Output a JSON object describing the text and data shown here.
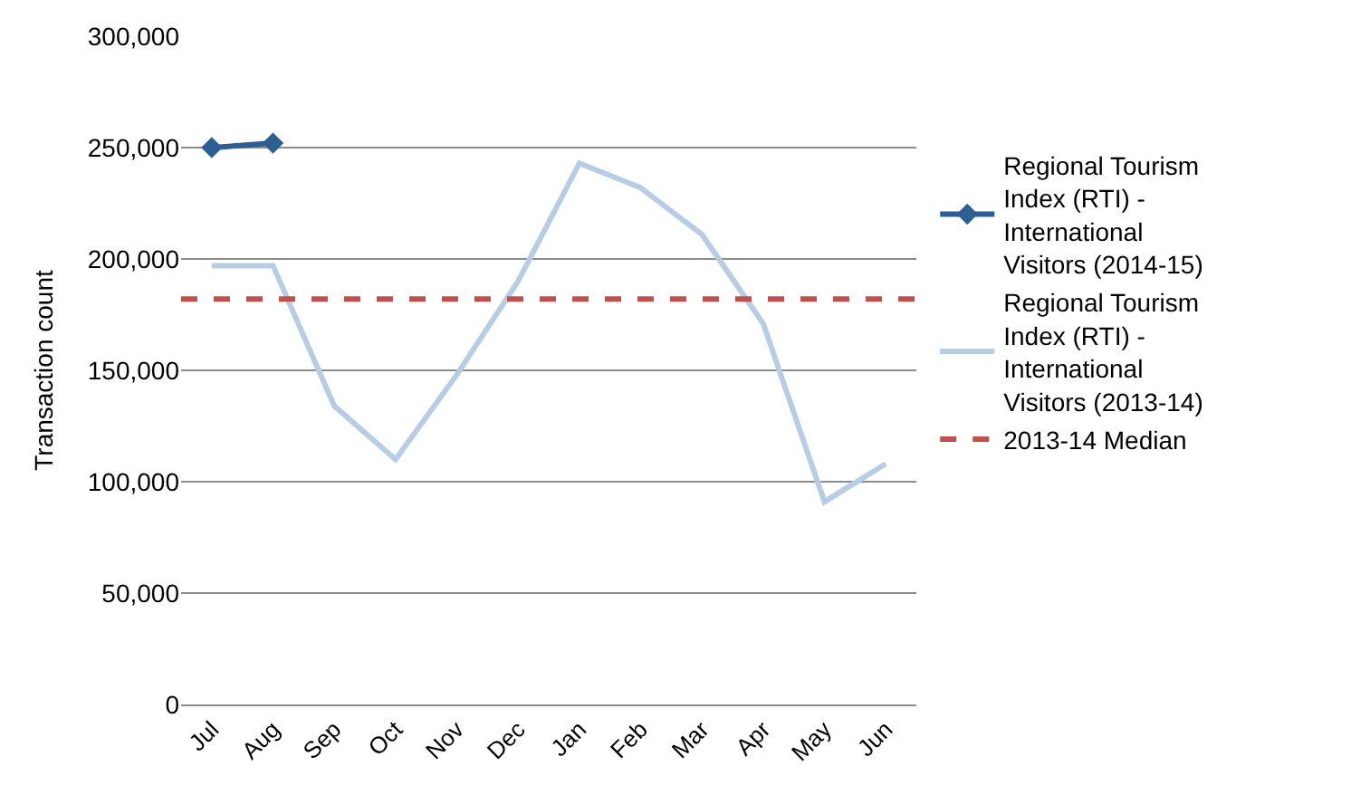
{
  "chart_data": {
    "type": "line",
    "ylabel": "Transaction count",
    "categories": [
      "Jul",
      "Aug",
      "Sep",
      "Oct",
      "Nov",
      "Dec",
      "Jan",
      "Feb",
      "Mar",
      "Apr",
      "May",
      "Jun"
    ],
    "series": [
      {
        "name": "Regional Tourism Index (RTI) - International Visitors (2014-15)",
        "color": "#2e5f94",
        "marker": "diamond",
        "values": [
          250000,
          252000,
          null,
          null,
          null,
          null,
          null,
          null,
          null,
          null,
          null,
          null
        ]
      },
      {
        "name": "Regional Tourism Index (RTI) - International Visitors (2013-14)",
        "color": "#b7cde6",
        "marker": "none",
        "values": [
          197000,
          197000,
          134000,
          110000,
          148000,
          190000,
          243000,
          232000,
          211000,
          171000,
          91000,
          108000
        ]
      }
    ],
    "ref_lines": [
      {
        "axis": "y",
        "value": 182000,
        "label": "2013-14 Median",
        "color": "#c0504d",
        "line_style": "dashed"
      }
    ],
    "ylim": [
      0,
      300000
    ],
    "yticks": [
      {
        "value": 0,
        "label": "0"
      },
      {
        "value": 50000,
        "label": "50,000"
      },
      {
        "value": 100000,
        "label": "100,000"
      },
      {
        "value": 150000,
        "label": "150,000"
      },
      {
        "value": 200000,
        "label": "200,000"
      },
      {
        "value": 250000,
        "label": "250,000"
      },
      {
        "value": 300000,
        "label": "300,000"
      }
    ],
    "grid": "y",
    "legend": "right"
  }
}
